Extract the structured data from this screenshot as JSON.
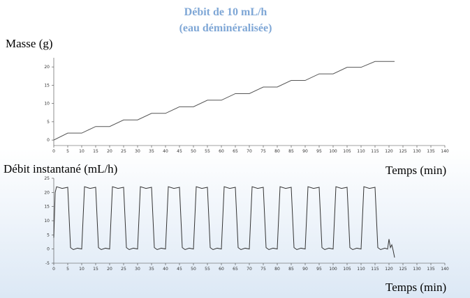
{
  "chart_data": [
    {
      "type": "line",
      "title": "Débit de 10 mL/h",
      "subtitle": "(eau déminéralisée)",
      "y_label": "Masse (g)",
      "x_label": "Temps (min)",
      "x": [
        0,
        5,
        10,
        15,
        20,
        25,
        30,
        35,
        40,
        45,
        50,
        55,
        60,
        65,
        70,
        75,
        80,
        85,
        90,
        95,
        100,
        105,
        110,
        115,
        122
      ],
      "series": [
        {
          "color": "#555555",
          "values": [
            0,
            1.9,
            1.9,
            3.7,
            3.7,
            5.5,
            5.5,
            7.3,
            7.3,
            9.1,
            9.1,
            10.9,
            10.9,
            12.7,
            12.7,
            14.5,
            14.5,
            16.3,
            16.3,
            18.1,
            18.1,
            19.9,
            19.9,
            21.5,
            21.5
          ]
        }
      ],
      "xlim": [
        0,
        140
      ],
      "xticks": [
        0,
        5,
        10,
        15,
        20,
        25,
        30,
        35,
        40,
        45,
        50,
        55,
        60,
        65,
        70,
        75,
        80,
        85,
        90,
        95,
        100,
        105,
        110,
        115,
        120,
        125,
        130,
        135,
        140
      ],
      "ylim": [
        -1.5,
        22.5
      ],
      "yticks": [
        0,
        5,
        10,
        15,
        20
      ]
    },
    {
      "type": "line",
      "y_label": "Débit instantané (mL/h)",
      "x_label": "Temps (min)",
      "x": [
        0,
        0.5,
        1,
        3,
        5,
        6,
        7,
        8.5,
        10,
        11,
        13,
        15,
        16,
        17,
        18.5,
        20,
        21,
        23,
        25,
        26,
        27,
        28.5,
        30,
        31,
        33,
        35,
        36,
        37,
        38.5,
        40,
        41,
        43,
        45,
        46,
        47,
        48.5,
        50,
        51,
        53,
        55,
        56,
        57,
        58.5,
        60,
        61,
        63,
        65,
        66,
        67,
        68.5,
        70,
        71,
        73,
        75,
        76,
        77,
        78.5,
        80,
        81,
        83,
        85,
        86,
        87,
        88.5,
        90,
        91,
        93,
        95,
        96,
        97,
        98.5,
        100,
        101,
        103,
        105,
        106,
        107,
        108.5,
        110,
        111,
        113,
        115,
        116,
        117,
        118.5,
        119.5,
        120,
        120.5,
        121,
        121.5,
        122
      ],
      "series": [
        {
          "color": "#333333",
          "values": [
            4,
            20,
            22,
            21.4,
            21.8,
            0.5,
            -0.2,
            0.3,
            0,
            22,
            21.4,
            21.8,
            0.5,
            -0.2,
            0.3,
            0,
            22,
            21.4,
            21.8,
            0.5,
            -0.2,
            0.3,
            0,
            22,
            21.4,
            21.8,
            0.5,
            -0.2,
            0.3,
            0,
            22,
            21.4,
            21.8,
            0.5,
            -0.2,
            0.3,
            0,
            22,
            21.4,
            21.8,
            0.5,
            -0.2,
            0.3,
            0,
            22,
            21.4,
            21.8,
            0.5,
            -0.2,
            0.3,
            0,
            22,
            21.4,
            21.8,
            0.5,
            -0.2,
            0.3,
            0,
            22,
            21.4,
            21.8,
            0.5,
            -0.2,
            0.3,
            0,
            22,
            21.4,
            21.8,
            0.5,
            -0.2,
            0.3,
            0,
            22,
            21.4,
            21.8,
            0.5,
            -0.2,
            0.3,
            0,
            22,
            21.4,
            21.8,
            0.5,
            -0.2,
            0.3,
            0,
            3.5,
            0.5,
            1.5,
            -0.5,
            -3
          ]
        }
      ],
      "xlim": [
        0,
        140
      ],
      "xticks": [
        0,
        5,
        10,
        15,
        20,
        25,
        30,
        35,
        40,
        45,
        50,
        55,
        60,
        65,
        70,
        75,
        80,
        85,
        90,
        95,
        100,
        105,
        110,
        115,
        120,
        125,
        130,
        135,
        140
      ],
      "ylim": [
        -5,
        25
      ],
      "yticks": [
        -5,
        0,
        5,
        10,
        15,
        20,
        25
      ]
    }
  ]
}
